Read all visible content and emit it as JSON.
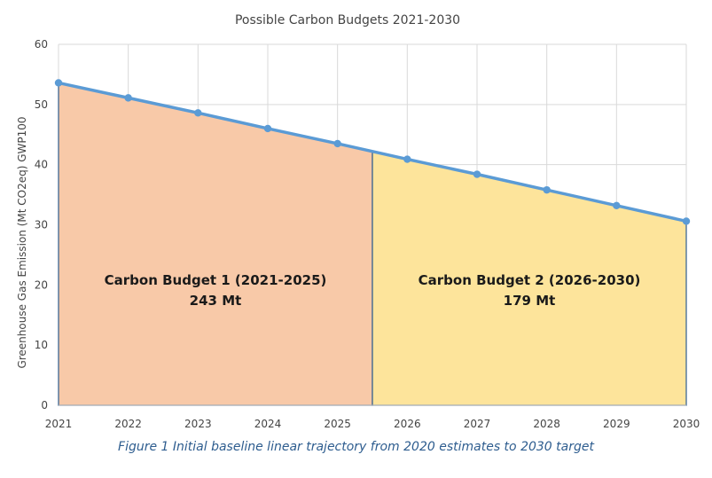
{
  "caption": "Figure 1 Initial baseline linear trajectory from 2020 estimates to 2030 target",
  "colors": {
    "line": "#5b9bd5",
    "budget1_fill": "#f8c9a8",
    "budget2_fill": "#fde49b",
    "divider": "#2e5d8f",
    "grid": "#d9d9d9"
  },
  "chart_data": {
    "type": "line",
    "title": "Possible Carbon Budgets 2021-2030",
    "xlabel": "",
    "ylabel": "Greenhouse Gas Emission (Mt CO2eq) GWP100",
    "x": [
      2021,
      2022,
      2023,
      2024,
      2025,
      2026,
      2027,
      2028,
      2029,
      2030
    ],
    "xlim": [
      2021,
      2030
    ],
    "ylim": [
      0,
      60
    ],
    "yticks": [
      0,
      10,
      20,
      30,
      40,
      50,
      60
    ],
    "grid": true,
    "legend": "none",
    "series": [
      {
        "values": [
          53.6,
          51.1,
          48.6,
          46.0,
          43.5,
          40.9,
          38.4,
          35.8,
          33.2,
          30.6
        ]
      }
    ],
    "regions": [
      {
        "x_start": 2021,
        "x_end": 2025.5,
        "label": "Carbon Budget 1 (2021-2025)",
        "value": "243 Mt"
      },
      {
        "x_start": 2025.5,
        "x_end": 2030,
        "label": "Carbon Budget 2 (2026-2030)",
        "value": "179 Mt"
      }
    ]
  }
}
